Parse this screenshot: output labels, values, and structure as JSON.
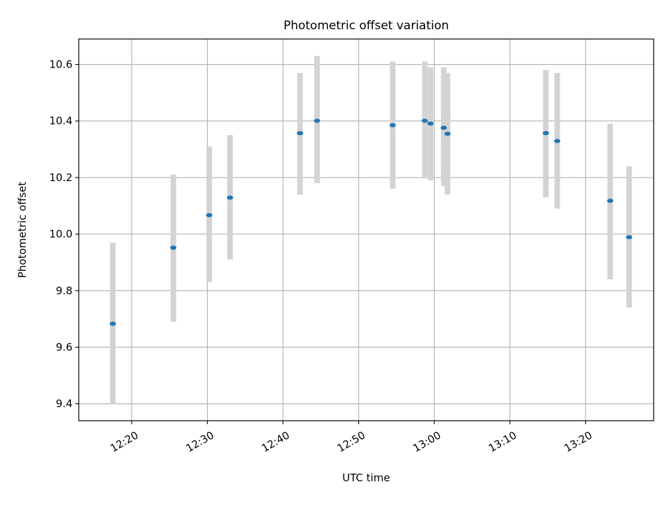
{
  "chart_data": {
    "type": "scatter",
    "title": "Photometric offset variation",
    "xlabel": "UTC time",
    "ylabel": "Photometric offset",
    "x_is_time": true,
    "xlim": [
      "12:13",
      "13:29"
    ],
    "ylim": [
      9.34,
      10.69
    ],
    "x_ticks": [
      "12:20",
      "12:30",
      "12:40",
      "12:50",
      "13:00",
      "13:10",
      "13:20"
    ],
    "y_ticks": [
      "9.4",
      "9.6",
      "9.8",
      "10.0",
      "10.2",
      "10.4",
      "10.6"
    ],
    "grid": true,
    "colors": {
      "point": "#1f77b4",
      "errorbar": "#d3d3d3",
      "grid": "#b0b0b0"
    },
    "points": [
      {
        "x": "12:17:30",
        "y": 9.683,
        "ylow": 9.4,
        "yhigh": 9.97
      },
      {
        "x": "12:25:30",
        "y": 9.952,
        "ylow": 9.69,
        "yhigh": 10.21
      },
      {
        "x": "12:30:15",
        "y": 10.067,
        "ylow": 9.83,
        "yhigh": 10.31
      },
      {
        "x": "12:33:00",
        "y": 10.129,
        "ylow": 9.91,
        "yhigh": 10.35
      },
      {
        "x": "12:42:15",
        "y": 10.357,
        "ylow": 10.14,
        "yhigh": 10.57
      },
      {
        "x": "12:44:30",
        "y": 10.401,
        "ylow": 10.18,
        "yhigh": 10.63
      },
      {
        "x": "12:54:30",
        "y": 10.385,
        "ylow": 10.16,
        "yhigh": 10.61
      },
      {
        "x": "12:58:45",
        "y": 10.401,
        "ylow": 10.2,
        "yhigh": 10.61
      },
      {
        "x": "12:59:30",
        "y": 10.391,
        "ylow": 10.19,
        "yhigh": 10.59
      },
      {
        "x": "13:01:15",
        "y": 10.376,
        "ylow": 10.17,
        "yhigh": 10.59
      },
      {
        "x": "13:01:45",
        "y": 10.355,
        "ylow": 10.14,
        "yhigh": 10.57
      },
      {
        "x": "13:14:45",
        "y": 10.357,
        "ylow": 10.13,
        "yhigh": 10.58
      },
      {
        "x": "13:16:15",
        "y": 10.329,
        "ylow": 10.09,
        "yhigh": 10.57
      },
      {
        "x": "13:23:15",
        "y": 10.118,
        "ylow": 9.84,
        "yhigh": 10.39
      },
      {
        "x": "13:25:45",
        "y": 9.989,
        "ylow": 9.74,
        "yhigh": 10.24
      }
    ]
  }
}
